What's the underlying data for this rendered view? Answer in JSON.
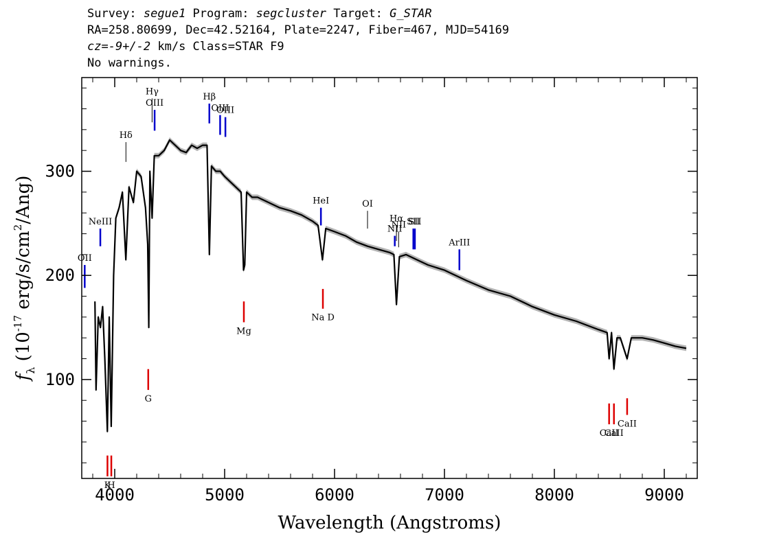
{
  "header": {
    "survey_label": "Survey: ",
    "survey": "segue1",
    "program_label": " Program: ",
    "program": "segcluster",
    "target_label": " Target: ",
    "target": "G_STAR",
    "coords": "RA=258.80699, Dec=42.52164, Plate=2247, Fiber=467, MJD=54169",
    "cz_label": "cz=",
    "cz_value": "-9+/-2",
    "cz_rest": " km/s Class=STAR F9",
    "warnings": "No warnings."
  },
  "colors": {
    "spectrum": "#000000",
    "error_band": "#b4b4b4",
    "emission_lines": "#0000cc",
    "absorption_lines": "#dd0000",
    "sky_lines": "#000000"
  },
  "chart_data": {
    "type": "line",
    "xlabel": "Wavelength (Angstroms)",
    "ylabel": "f_λ (10^-17 erg/s/cm^2/Ang)",
    "xlim": [
      3700,
      9300
    ],
    "ylim": [
      5,
      390
    ],
    "xticks": [
      4000,
      5000,
      6000,
      7000,
      8000,
      9000
    ],
    "yticks": [
      100,
      200,
      300
    ],
    "grid": false,
    "series": [
      {
        "x": [
          3820,
          3830,
          3850,
          3870,
          3890,
          3910,
          3933,
          3950,
          3968,
          3990,
          4010,
          4040,
          4070,
          4101,
          4130,
          4170,
          4200,
          4240,
          4280,
          4300,
          4310,
          4320,
          4340,
          4360,
          4400,
          4450,
          4500,
          4550,
          4600,
          4650,
          4700,
          4750,
          4800,
          4840,
          4861,
          4880,
          4920,
          4960,
          5000,
          5050,
          5100,
          5150,
          5172,
          5183,
          5200,
          5250,
          5300,
          5400,
          5500,
          5600,
          5700,
          5800,
          5850,
          5890,
          5920,
          6000,
          6100,
          6200,
          6300,
          6400,
          6500,
          6540,
          6563,
          6590,
          6650,
          6750,
          6850,
          7000,
          7200,
          7400,
          7600,
          7800,
          8000,
          8200,
          8400,
          8480,
          8498,
          8520,
          8542,
          8570,
          8600,
          8662,
          8700,
          8800,
          8900,
          9000,
          9100,
          9200
        ],
        "y": [
          175,
          90,
          160,
          150,
          170,
          120,
          50,
          160,
          55,
          200,
          255,
          265,
          280,
          215,
          285,
          270,
          300,
          295,
          265,
          230,
          150,
          300,
          255,
          315,
          315,
          320,
          330,
          325,
          320,
          318,
          325,
          322,
          325,
          325,
          220,
          305,
          300,
          300,
          295,
          290,
          285,
          280,
          205,
          210,
          280,
          275,
          275,
          270,
          265,
          262,
          258,
          252,
          248,
          215,
          245,
          242,
          238,
          232,
          228,
          225,
          222,
          220,
          172,
          218,
          220,
          215,
          210,
          205,
          195,
          186,
          180,
          170,
          162,
          156,
          148,
          145,
          120,
          145,
          110,
          140,
          140,
          120,
          140,
          140,
          138,
          135,
          132,
          130
        ]
      }
    ],
    "emission_lines": [
      {
        "label": "OII",
        "wavelength": 3727,
        "y_top": 210,
        "y_bottom": 188
      },
      {
        "label": "NeIII",
        "wavelength": 3869,
        "y_top": 245,
        "y_bottom": 228
      },
      {
        "label": "OIII",
        "wavelength": 4363,
        "y_top": 359,
        "y_bottom": 339
      },
      {
        "label": "Hβ",
        "wavelength": 4861,
        "y_top": 365,
        "y_bottom": 346
      },
      {
        "label": "OIII",
        "wavelength": 4959,
        "y_top": 354,
        "y_bottom": 335
      },
      {
        "label": "OIII",
        "wavelength": 5007,
        "y_top": 352,
        "y_bottom": 333
      },
      {
        "label": "HeI",
        "wavelength": 5876,
        "y_top": 265,
        "y_bottom": 248
      },
      {
        "label": "NII",
        "wavelength": 6548,
        "y_top": 238,
        "y_bottom": 228
      },
      {
        "label": "SII",
        "wavelength": 6717,
        "y_top": 245,
        "y_bottom": 225
      },
      {
        "label": "SII",
        "wavelength": 6731,
        "y_top": 245,
        "y_bottom": 225
      },
      {
        "label": "ArIII",
        "wavelength": 7136,
        "y_top": 225,
        "y_bottom": 205
      }
    ],
    "absorption_lines": [
      {
        "label": "K",
        "wavelength": 3934,
        "y_top": 27,
        "y_bottom": 7
      },
      {
        "label": "H",
        "wavelength": 3969,
        "y_top": 27,
        "y_bottom": 7
      },
      {
        "label": "G",
        "wavelength": 4305,
        "y_top": 110,
        "y_bottom": 90
      },
      {
        "label": "Mg",
        "wavelength": 5175,
        "y_top": 175,
        "y_bottom": 155
      },
      {
        "label": "Na D",
        "wavelength": 5894,
        "y_top": 187,
        "y_bottom": 168
      },
      {
        "label": "CaII",
        "wavelength": 8498,
        "y_top": 77,
        "y_bottom": 57
      },
      {
        "label": "CaII",
        "wavelength": 8542,
        "y_top": 77,
        "y_bottom": 57
      },
      {
        "label": "CaII",
        "wavelength": 8662,
        "y_top": 82,
        "y_bottom": 66
      }
    ],
    "sky_lines": [
      {
        "label": "Hδ",
        "wavelength": 4102,
        "y_top": 328,
        "y_bottom": 309
      },
      {
        "label": "Hγ",
        "wavelength": 4340,
        "y_top": 370,
        "y_bottom": 347
      },
      {
        "label": "OI",
        "wavelength": 6300,
        "y_top": 262,
        "y_bottom": 245
      },
      {
        "label": "Hα",
        "wavelength": 6563,
        "y_top": 248,
        "y_bottom": 233
      },
      {
        "label": "NII",
        "wavelength": 6583,
        "y_top": 242,
        "y_bottom": 227
      }
    ]
  }
}
